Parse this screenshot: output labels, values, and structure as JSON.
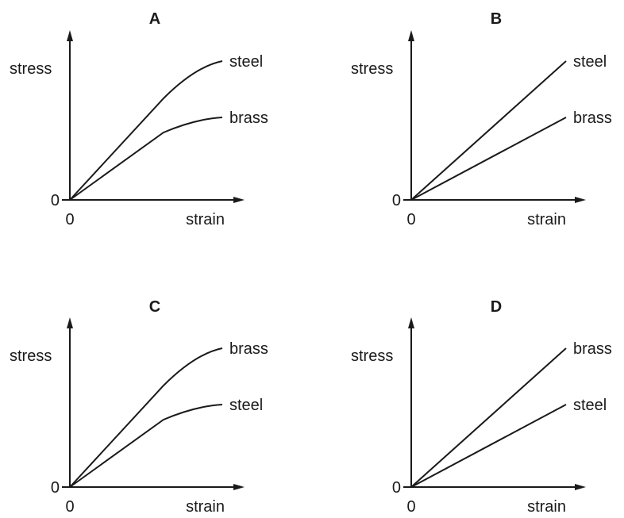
{
  "chart_data": [
    {
      "type": "line",
      "title": "A",
      "xlabel": "strain",
      "ylabel": "stress",
      "x_origin_label": "0",
      "y_origin_label": "0",
      "grid": false,
      "series": [
        {
          "name": "steel",
          "shape": "linear then curving over (yield)"
        },
        {
          "name": "brass",
          "shape": "linear then curving over (yield)"
        }
      ]
    },
    {
      "type": "line",
      "title": "B",
      "xlabel": "strain",
      "ylabel": "stress",
      "x_origin_label": "0",
      "y_origin_label": "0",
      "grid": false,
      "series": [
        {
          "name": "steel",
          "shape": "straight line"
        },
        {
          "name": "brass",
          "shape": "straight line"
        }
      ]
    },
    {
      "type": "line",
      "title": "C",
      "xlabel": "strain",
      "ylabel": "stress",
      "x_origin_label": "0",
      "y_origin_label": "0",
      "grid": false,
      "series": [
        {
          "name": "brass",
          "shape": "linear then curving over (yield)"
        },
        {
          "name": "steel",
          "shape": "linear then curving over (yield)"
        }
      ]
    },
    {
      "type": "line",
      "title": "D",
      "xlabel": "strain",
      "ylabel": "stress",
      "x_origin_label": "0",
      "y_origin_label": "0",
      "grid": false,
      "series": [
        {
          "name": "brass",
          "shape": "straight line"
        },
        {
          "name": "steel",
          "shape": "straight line"
        }
      ]
    }
  ]
}
